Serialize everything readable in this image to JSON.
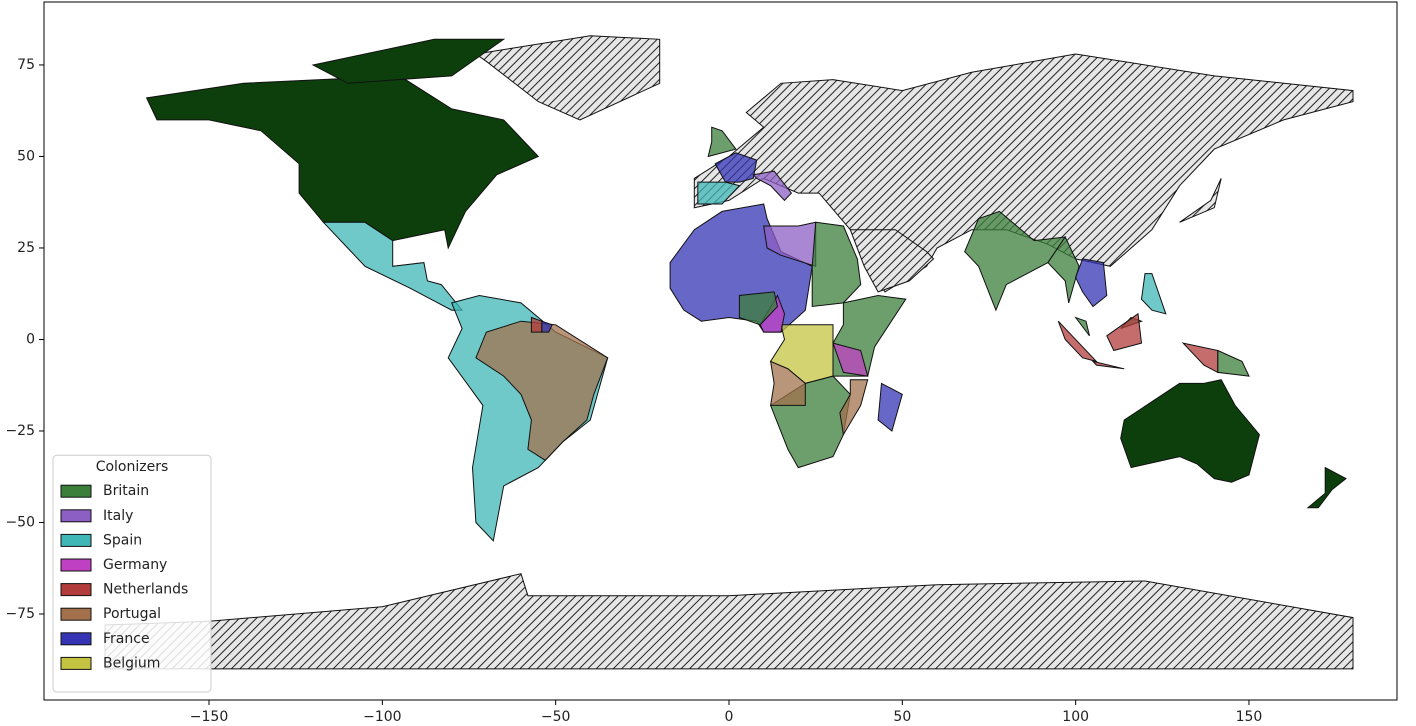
{
  "chart_data": {
    "type": "map",
    "xlim": [
      -197.6,
      192.7
    ],
    "ylim": [
      -98.5,
      92.2
    ],
    "xticks": [
      {
        "value": -150,
        "label": "−150"
      },
      {
        "value": -100,
        "label": "−100"
      },
      {
        "value": -50,
        "label": "−50"
      },
      0,
      50,
      100,
      150
    ],
    "yticks": [
      {
        "value": -75,
        "label": "−75"
      },
      {
        "value": -50,
        "label": "−50"
      },
      {
        "value": -25,
        "label": "−25"
      },
      0,
      25,
      50,
      75
    ],
    "legend": {
      "title": "Colonizers",
      "loc": "lower left"
    },
    "series": [
      {
        "name": "Britain",
        "color": "#3b7f3b"
      },
      {
        "name": "Italy",
        "color": "#8c5fc4"
      },
      {
        "name": "Spain",
        "color": "#3fb7b7"
      },
      {
        "name": "Germany",
        "color": "#c040c4"
      },
      {
        "name": "Netherlands",
        "color": "#b23c3c"
      },
      {
        "name": "Portugal",
        "color": "#a2714c"
      },
      {
        "name": "France",
        "color": "#3434b4"
      },
      {
        "name": "Belgium",
        "color": "#c4c442"
      }
    ]
  }
}
